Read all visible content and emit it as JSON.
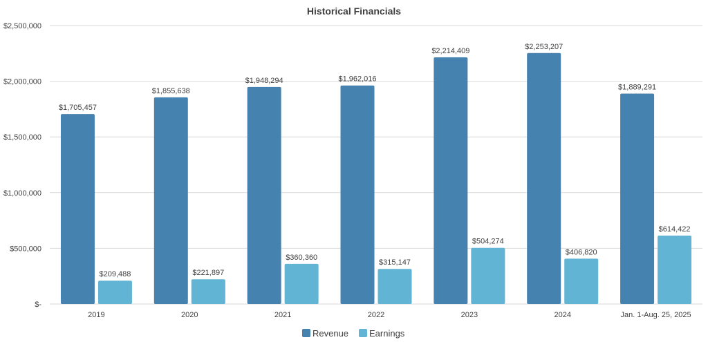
{
  "chart_data": {
    "type": "bar",
    "title": "Historical Financials",
    "xlabel": "",
    "ylabel": "",
    "categories": [
      "2019",
      "2020",
      "2021",
      "2022",
      "2023",
      "2024",
      "Jan. 1-Aug. 25, 2025"
    ],
    "series": [
      {
        "name": "Revenue",
        "color": "#4682b0",
        "values": [
          1705457,
          1855638,
          1948294,
          1962016,
          2214409,
          2253207,
          1889291
        ],
        "labels": [
          "$1,705,457",
          "$1,855,638",
          "$1,948,294",
          "$1,962,016",
          "$2,214,409",
          "$2,253,207",
          "$1,889,291"
        ]
      },
      {
        "name": "Earnings",
        "color": "#61b4d3",
        "values": [
          209488,
          221897,
          360360,
          315147,
          504274,
          406820,
          614422
        ],
        "labels": [
          "$209,488",
          "$221,897",
          "$360,360",
          "$315,147",
          "$504,274",
          "$406,820",
          "$614,422"
        ]
      }
    ],
    "ylim": [
      0,
      2500000
    ],
    "yticks": [
      0,
      500000,
      1000000,
      1500000,
      2000000,
      2500000
    ],
    "ytick_labels": [
      "$-",
      "$500,000",
      "$1,000,000",
      "$1,500,000",
      "$2,000,000",
      "$2,500,000"
    ],
    "grid": true,
    "legend_position": "bottom"
  }
}
